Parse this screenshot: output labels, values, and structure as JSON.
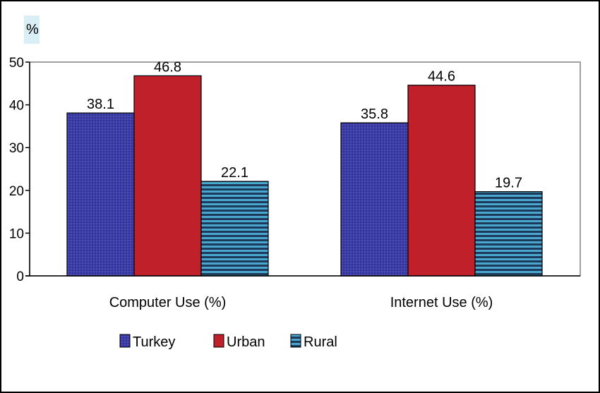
{
  "chart_data": {
    "type": "bar",
    "y_unit": "%",
    "categories": [
      "Computer Use (%)",
      "Internet Use (%)"
    ],
    "series": [
      {
        "name": "Turkey",
        "values": [
          38.1,
          35.8
        ],
        "color": "#3f3fa8"
      },
      {
        "name": "Urban",
        "values": [
          46.8,
          44.6
        ],
        "color": "#c0202a"
      },
      {
        "name": "Rural",
        "values": [
          22.1,
          19.7
        ],
        "color": "#3f9fc6"
      }
    ],
    "data_labels": [
      [
        "38.1",
        "35.8"
      ],
      [
        "46.8",
        "44.6"
      ],
      [
        "22.1",
        "19.7"
      ]
    ],
    "ylim": [
      0,
      50
    ],
    "yticks": [
      0,
      10,
      20,
      30,
      40,
      50
    ],
    "ytick_labels": [
      "0",
      "10",
      "20",
      "30",
      "40",
      "50"
    ],
    "grid": false,
    "legend_position": "bottom"
  }
}
